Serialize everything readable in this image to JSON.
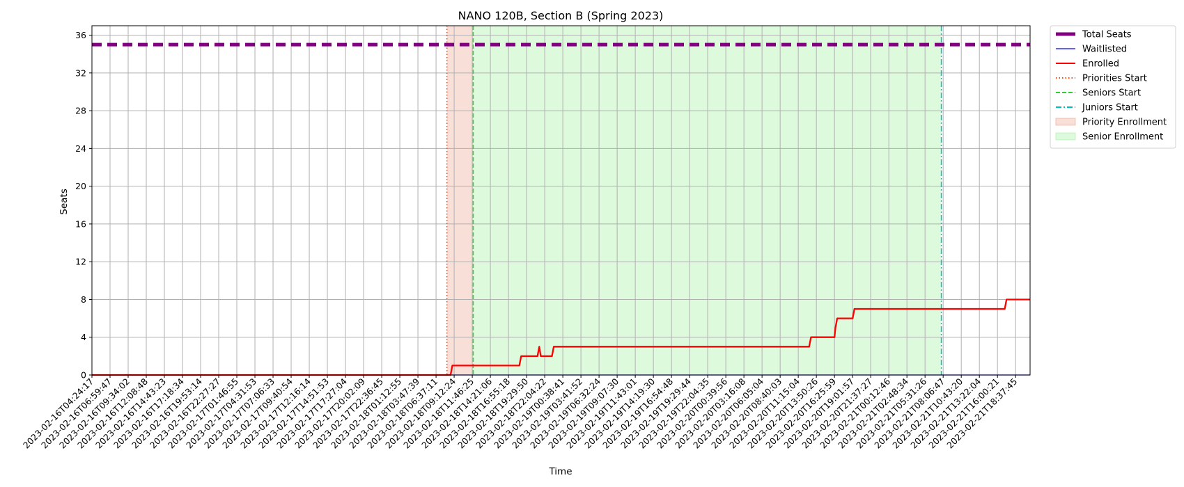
{
  "chart_data": {
    "type": "line",
    "title": "NANO 120B, Section B (Spring 2023)",
    "xlabel": "Time",
    "ylabel": "Seats",
    "ylim": [
      0,
      37
    ],
    "yticks": [
      0,
      4,
      8,
      12,
      16,
      20,
      24,
      28,
      32,
      36
    ],
    "grid": true,
    "legend_position": "outside-top-right",
    "xtick_labels": [
      "2023-02-16T04:24:17",
      "2023-02-16T06:59:47",
      "2023-02-16T09:34:02",
      "2023-02-16T12:08:48",
      "2023-02-16T14:43:23",
      "2023-02-16T17:18:34",
      "2023-02-16T19:53:14",
      "2023-02-16T22:27:27",
      "2023-02-17T01:46:55",
      "2023-02-17T04:31:53",
      "2023-02-17T07:06:33",
      "2023-02-17T09:40:54",
      "2023-02-17T12:16:14",
      "2023-02-17T14:51:53",
      "2023-02-17T17:27:04",
      "2023-02-17T20:02:09",
      "2023-02-17T22:36:45",
      "2023-02-18T01:12:55",
      "2023-02-18T03:47:39",
      "2023-02-18T06:37:11",
      "2023-02-18T09:12:24",
      "2023-02-18T11:46:25",
      "2023-02-18T14:21:06",
      "2023-02-18T16:55:18",
      "2023-02-18T19:29:50",
      "2023-02-18T22:04:22",
      "2023-02-19T00:38:41",
      "2023-02-19T03:41:52",
      "2023-02-19T06:32:24",
      "2023-02-19T09:07:30",
      "2023-02-19T11:43:01",
      "2023-02-19T14:19:30",
      "2023-02-19T16:54:48",
      "2023-02-19T19:29:44",
      "2023-02-19T22:04:35",
      "2023-02-20T00:39:56",
      "2023-02-20T03:16:08",
      "2023-02-20T06:05:04",
      "2023-02-20T08:40:03",
      "2023-02-20T11:15:04",
      "2023-02-20T13:50:26",
      "2023-02-20T16:25:59",
      "2023-02-20T19:01:57",
      "2023-02-20T21:37:27",
      "2023-02-21T00:12:46",
      "2023-02-21T02:48:34",
      "2023-02-21T05:31:26",
      "2023-02-21T08:06:47",
      "2023-02-21T10:43:20",
      "2023-02-21T13:22:04",
      "2023-02-21T16:00:21",
      "2023-02-21T18:37:45"
    ],
    "x_range": [
      0,
      51.8
    ],
    "series": [
      {
        "name": "Total Seats",
        "color": "#800080",
        "style": "dashed-thick",
        "points": [
          [
            0,
            35
          ],
          [
            51.8,
            35
          ]
        ]
      },
      {
        "name": "Waitlisted",
        "color": "#0000ff",
        "style": "solid-thin",
        "points": [
          [
            0,
            0
          ],
          [
            51.8,
            0
          ]
        ]
      },
      {
        "name": "Enrolled",
        "color": "#ff0000",
        "style": "solid",
        "points": [
          [
            0,
            0
          ],
          [
            19.8,
            0
          ],
          [
            19.9,
            1
          ],
          [
            23.6,
            1
          ],
          [
            23.7,
            2
          ],
          [
            24.6,
            2
          ],
          [
            24.7,
            3
          ],
          [
            24.78,
            2
          ],
          [
            25.4,
            2
          ],
          [
            25.5,
            3
          ],
          [
            39.6,
            3
          ],
          [
            39.7,
            4
          ],
          [
            41.0,
            4
          ],
          [
            41.05,
            5
          ],
          [
            41.15,
            6
          ],
          [
            42.0,
            6
          ],
          [
            42.1,
            7
          ],
          [
            50.4,
            7
          ],
          [
            50.5,
            8
          ],
          [
            51.8,
            8
          ]
        ]
      }
    ],
    "vlines": [
      {
        "name": "Priorities Start",
        "x": 19.6,
        "color": "#ff4500",
        "style": "dotted"
      },
      {
        "name": "Seniors Start",
        "x": 21.05,
        "color": "#32cd32",
        "style": "dashed"
      },
      {
        "name": "Juniors Start",
        "x": 46.9,
        "color": "#00bfbf",
        "style": "dashdot"
      }
    ],
    "spans": [
      {
        "name": "Priority Enrollment",
        "x0": 19.6,
        "x1": 21.05,
        "color": "#e9967a"
      },
      {
        "name": "Senior Enrollment",
        "x0": 21.05,
        "x1": 46.9,
        "color": "#90ee90"
      }
    ],
    "legend": [
      "Total Seats",
      "Waitlisted",
      "Enrolled",
      "Priorities Start",
      "Seniors Start",
      "Juniors Start",
      "Priority Enrollment",
      "Senior Enrollment"
    ]
  }
}
